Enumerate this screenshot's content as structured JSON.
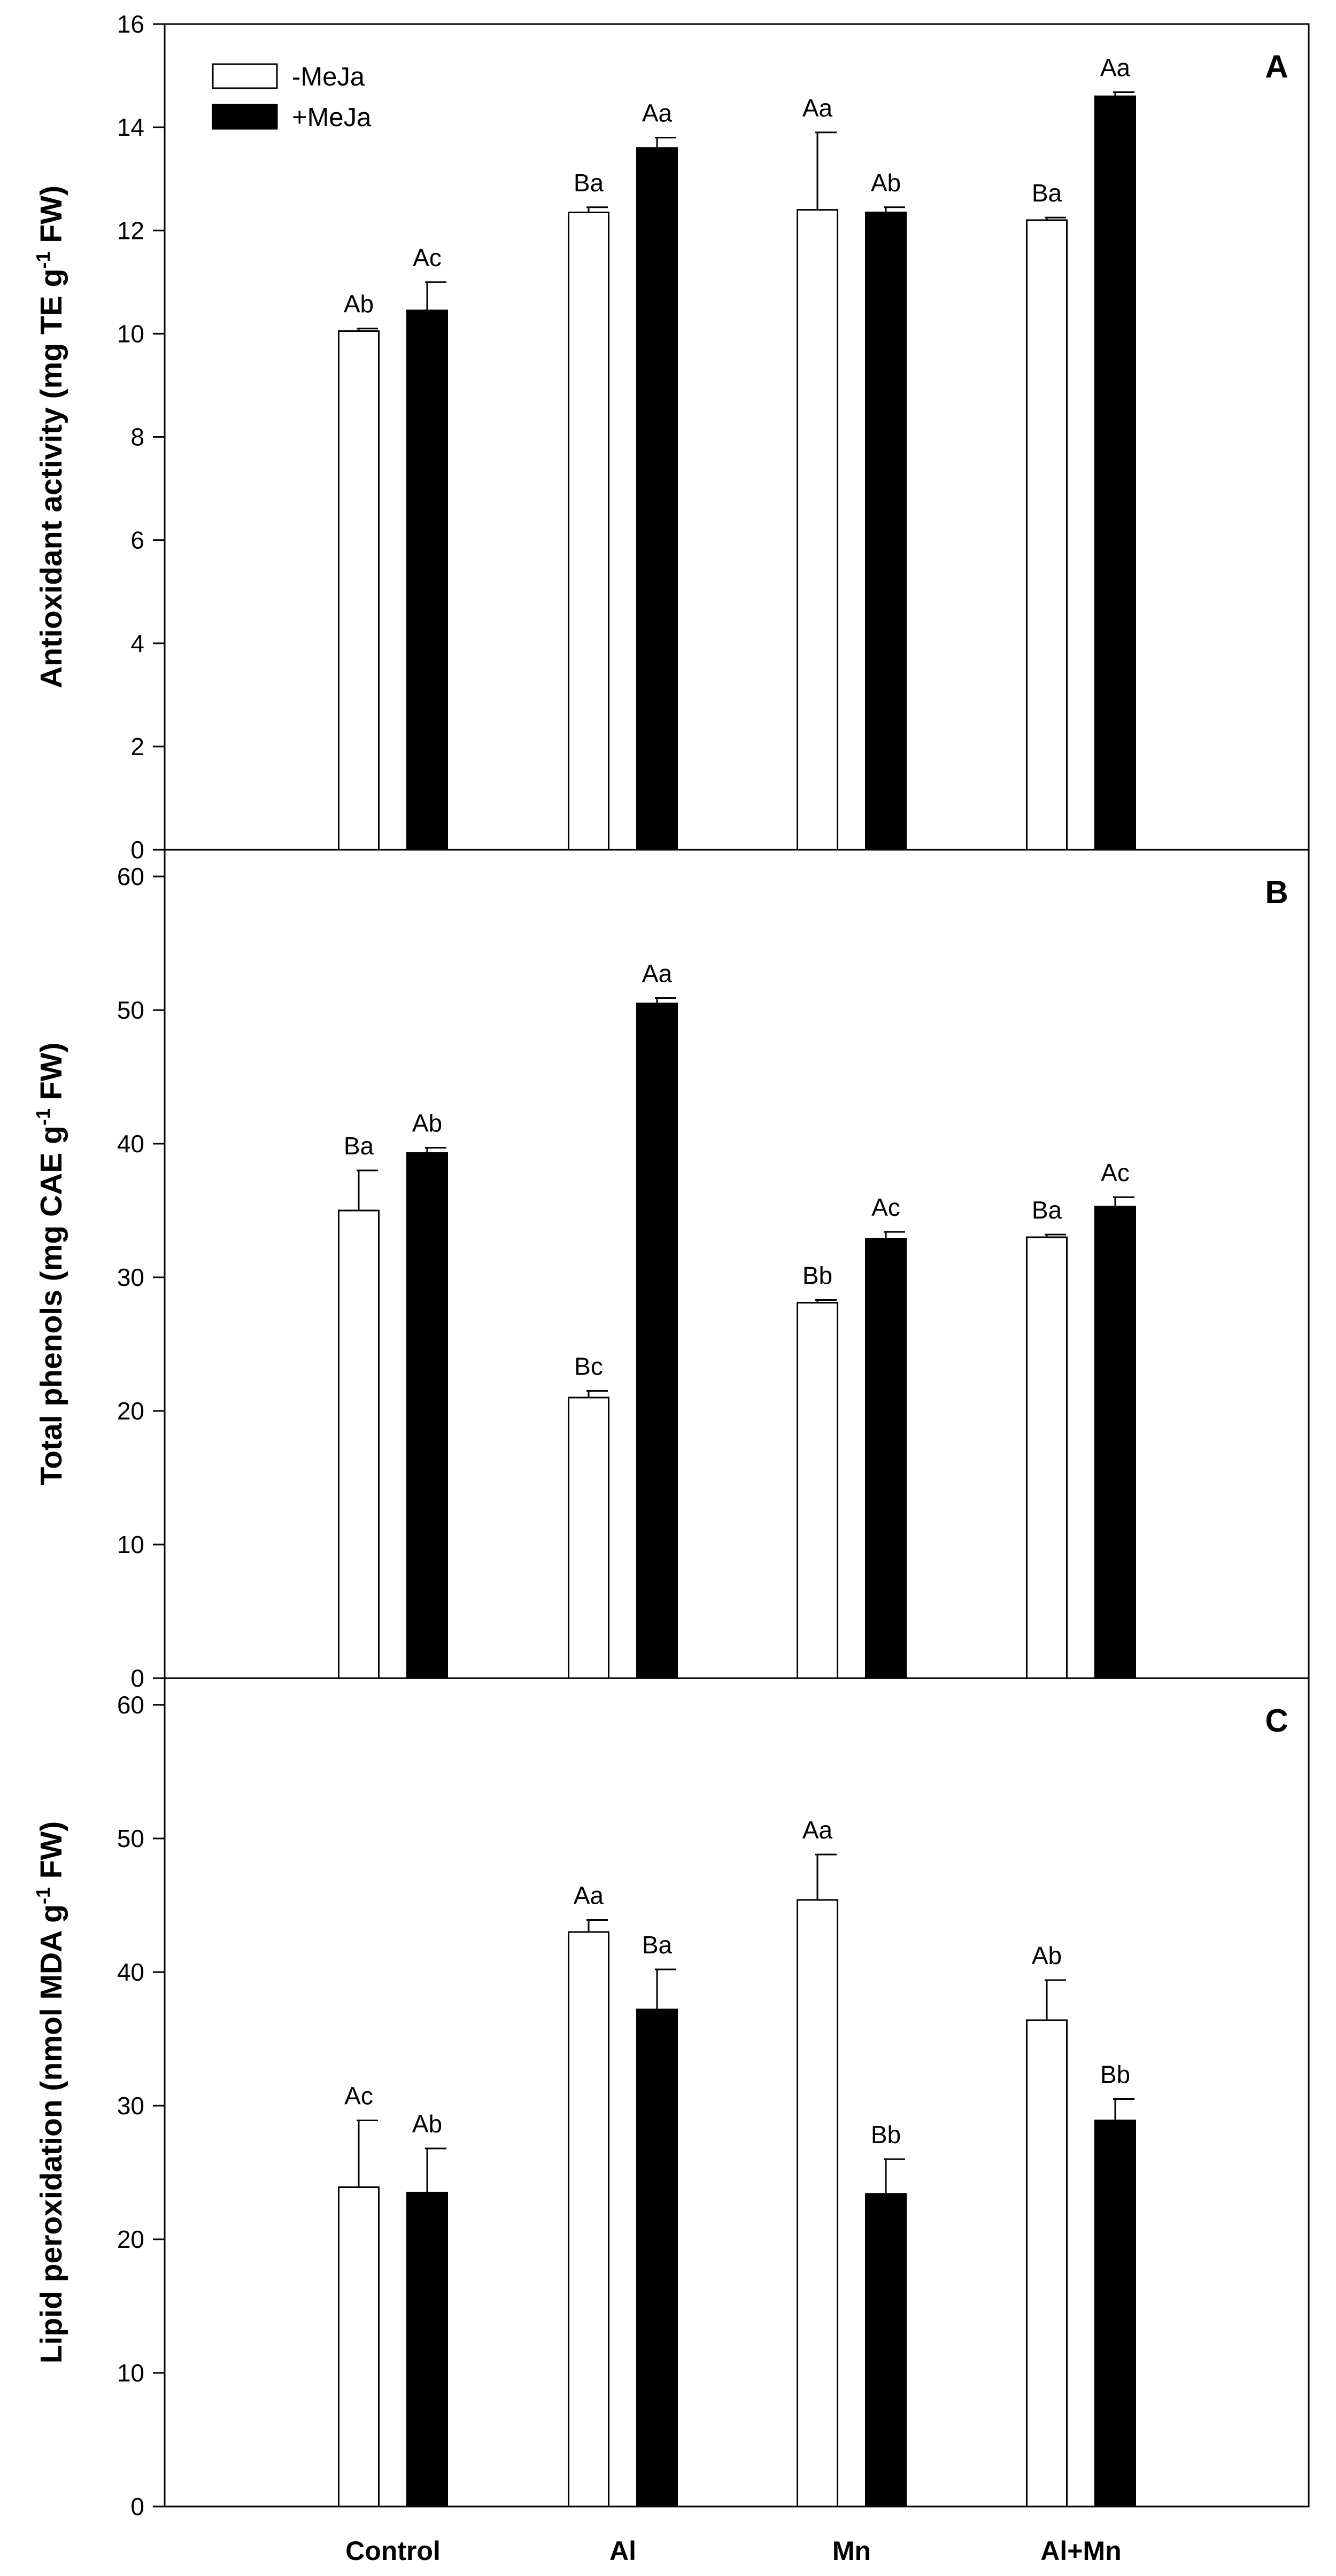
{
  "chart_data": [
    {
      "type": "bar",
      "panel": "A",
      "ylabel": "Antioxidant activity (mg TE g⁻¹ FW)",
      "ylabel_parts": [
        "Antioxidant activity (mg TE g",
        "-1",
        " FW)"
      ],
      "ylim": [
        0,
        16
      ],
      "yticks": [
        0,
        2,
        4,
        6,
        8,
        10,
        12,
        14,
        16
      ],
      "categories": [
        "Control",
        "Al",
        "Mn",
        "Al+Mn"
      ],
      "legend": {
        "position": "top-left",
        "entries": [
          "-MeJa",
          "+MeJa"
        ]
      },
      "series": [
        {
          "name": "-MeJa",
          "color": "#ffffff",
          "values": [
            10.05,
            12.35,
            12.4,
            12.2
          ],
          "errors": [
            0.05,
            0.1,
            1.5,
            0.05
          ],
          "labels": [
            "Ab",
            "Ba",
            "Aa",
            "Ba"
          ]
        },
        {
          "name": "+MeJa",
          "color": "#000000",
          "values": [
            10.45,
            13.6,
            12.35,
            14.6
          ],
          "errors": [
            0.55,
            0.2,
            0.1,
            0.08
          ],
          "labels": [
            "Ac",
            "Aa",
            "Ab",
            "Aa"
          ]
        }
      ]
    },
    {
      "type": "bar",
      "panel": "B",
      "ylabel": "Total phenols (mg CAE g⁻¹ FW)",
      "ylabel_parts": [
        "Total phenols (mg CAE g",
        "-1",
        " FW)"
      ],
      "ylim": [
        0,
        62
      ],
      "yticks": [
        0,
        10,
        20,
        30,
        40,
        50,
        60
      ],
      "categories": [
        "Control",
        "Al",
        "Mn",
        "Al+Mn"
      ],
      "series": [
        {
          "name": "-MeJa",
          "color": "#ffffff",
          "values": [
            35.0,
            21.0,
            28.1,
            33.0
          ],
          "errors": [
            3.0,
            0.5,
            0.2,
            0.2
          ],
          "labels": [
            "Ba",
            "Bc",
            "Bb",
            "Ba"
          ]
        },
        {
          "name": "+MeJa",
          "color": "#000000",
          "values": [
            39.3,
            50.5,
            32.9,
            35.3
          ],
          "errors": [
            0.4,
            0.4,
            0.5,
            0.7
          ],
          "labels": [
            "Ab",
            "Aa",
            "Ac",
            "Ac"
          ]
        }
      ]
    },
    {
      "type": "bar",
      "panel": "C",
      "ylabel": "Lipid peroxidation (nmol MDA g⁻¹ FW)",
      "ylabel_parts": [
        "Lipid peroxidation (nmol MDA g",
        "-1",
        " FW)"
      ],
      "ylim": [
        0,
        62
      ],
      "yticks": [
        0,
        10,
        20,
        30,
        40,
        50,
        60
      ],
      "categories": [
        "Control",
        "Al",
        "Mn",
        "Al+Mn"
      ],
      "series": [
        {
          "name": "-MeJa",
          "color": "#ffffff",
          "values": [
            23.9,
            43.0,
            45.4,
            36.4
          ],
          "errors": [
            5.0,
            0.9,
            3.4,
            3.0
          ],
          "labels": [
            "Ac",
            "Aa",
            "Aa",
            "Ab"
          ]
        },
        {
          "name": "+MeJa",
          "color": "#000000",
          "values": [
            23.5,
            37.2,
            23.4,
            28.9
          ],
          "errors": [
            3.3,
            3.0,
            2.6,
            1.6
          ],
          "labels": [
            "Ab",
            "Ba",
            "Bb",
            "Bb"
          ]
        }
      ]
    }
  ]
}
